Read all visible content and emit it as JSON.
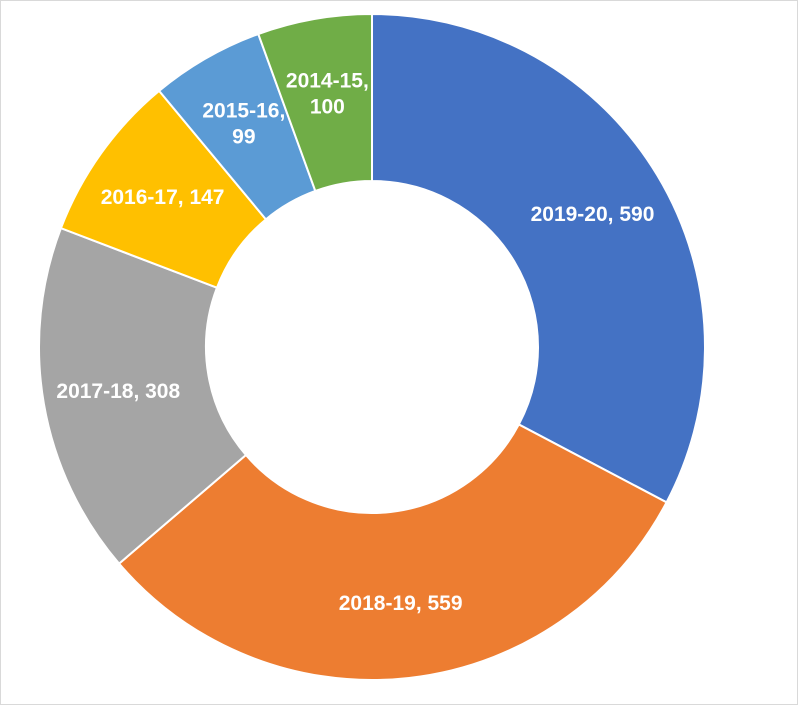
{
  "chart_data": {
    "type": "pie",
    "donut": true,
    "title": "",
    "legend": "none",
    "slices": [
      {
        "label": "2019-20",
        "value": 590,
        "color": "#4472c4",
        "display": [
          "2019-20, 590"
        ]
      },
      {
        "label": "2018-19",
        "value": 559,
        "color": "#ed7d31",
        "display": [
          "2018-19, 559"
        ]
      },
      {
        "label": "2017-18",
        "value": 308,
        "color": "#a5a5a5",
        "display": [
          "2017-18, 308"
        ]
      },
      {
        "label": "2016-17",
        "value": 147,
        "color": "#ffc000",
        "display": [
          "2016-17, 147"
        ]
      },
      {
        "label": "2015-16",
        "value": 99,
        "color": "#5b9bd5",
        "display": [
          "2015-16,",
          "99"
        ]
      },
      {
        "label": "2014-15",
        "value": 100,
        "color": "#70ad47",
        "display": [
          "2014-15,",
          "100"
        ]
      }
    ]
  }
}
